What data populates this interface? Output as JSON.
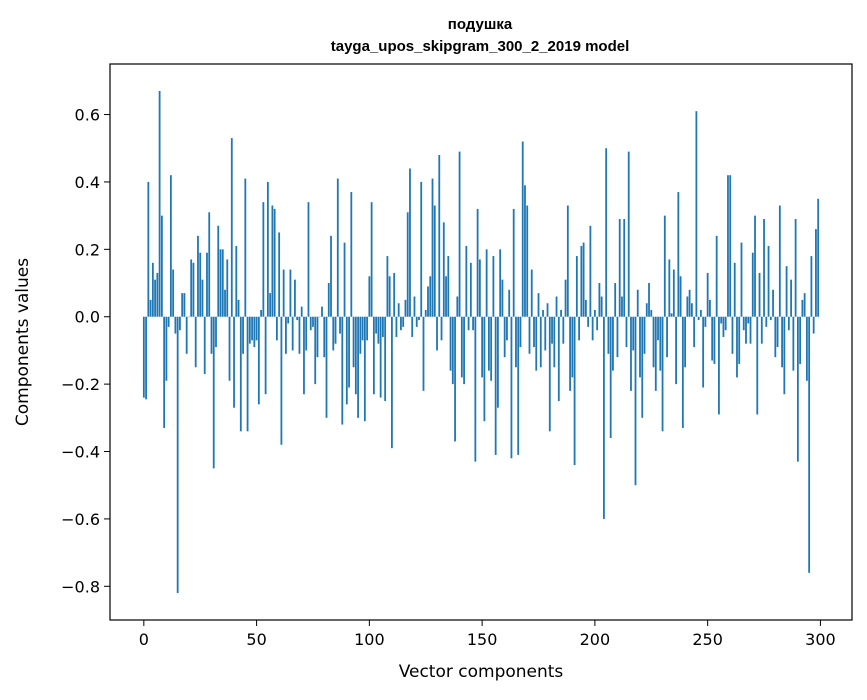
{
  "chart_data": {
    "type": "bar",
    "title": "подушка",
    "subtitle": "tayga_upos_skipgram_300_2_2019 model",
    "xlabel": "Vector components",
    "ylabel": "Components values",
    "xlim": [
      -15,
      314
    ],
    "ylim": [
      -0.9,
      0.75
    ],
    "xticks": [
      0,
      50,
      100,
      150,
      200,
      250,
      300
    ],
    "xtick_labels": [
      "0",
      "50",
      "100",
      "150",
      "200",
      "250",
      "300"
    ],
    "yticks": [
      -0.8,
      -0.6,
      -0.4,
      -0.2,
      0.0,
      0.2,
      0.4,
      0.6
    ],
    "ytick_labels": [
      "−0.8",
      "−0.6",
      "−0.4",
      "−0.2",
      "0.0",
      "0.2",
      "0.4",
      "0.6"
    ],
    "grid": false,
    "bar_color": "#1f77b4",
    "bar_width": 0.8,
    "values": [
      -0.24,
      -0.245,
      0.4,
      0.05,
      0.16,
      0.11,
      0.13,
      0.67,
      0.3,
      -0.33,
      -0.19,
      -0.03,
      0.42,
      0.14,
      -0.05,
      -0.82,
      -0.04,
      0.07,
      0.07,
      -0.11,
      0.0,
      0.17,
      0.16,
      -0.15,
      0.24,
      0.19,
      0.11,
      -0.17,
      0.19,
      0.31,
      -0.11,
      -0.45,
      -0.09,
      0.27,
      0.2,
      0.2,
      0.08,
      0.17,
      -0.19,
      0.53,
      -0.27,
      0.21,
      0.05,
      -0.34,
      -0.11,
      0.41,
      -0.34,
      -0.08,
      -0.07,
      -0.09,
      -0.07,
      -0.26,
      0.02,
      0.34,
      -0.23,
      0.4,
      0.07,
      0.33,
      0.32,
      -0.07,
      0.25,
      -0.38,
      0.14,
      -0.11,
      -0.02,
      0.14,
      -0.1,
      0.11,
      -0.01,
      -0.11,
      0.03,
      -0.23,
      -0.1,
      0.34,
      -0.04,
      -0.03,
      -0.2,
      -0.12,
      0.0,
      0.03,
      -0.12,
      -0.3,
      0.1,
      0.24,
      -0.1,
      -0.08,
      0.41,
      -0.05,
      -0.32,
      0.22,
      -0.26,
      -0.21,
      0.37,
      -0.15,
      -0.23,
      -0.3,
      -0.11,
      -0.07,
      -0.31,
      -0.07,
      0.12,
      0.34,
      -0.23,
      -0.05,
      -0.08,
      -0.24,
      -0.06,
      -0.25,
      0.18,
      0.12,
      -0.39,
      0.13,
      -0.06,
      0.04,
      -0.04,
      -0.03,
      0.05,
      0.31,
      0.44,
      -0.06,
      0.06,
      -0.03,
      -0.01,
      0.4,
      -0.22,
      0.02,
      0.09,
      0.12,
      0.41,
      0.33,
      -0.1,
      0.48,
      -0.07,
      0.28,
      0.12,
      0.18,
      -0.16,
      -0.2,
      -0.37,
      0.06,
      0.49,
      -0.18,
      -0.2,
      0.21,
      -0.04,
      0.16,
      -0.04,
      -0.43,
      0.32,
      0.17,
      -0.18,
      -0.31,
      0.2,
      -0.16,
      -0.19,
      0.18,
      -0.41,
      -0.27,
      0.2,
      0.11,
      -0.12,
      -0.07,
      0.08,
      -0.42,
      0.32,
      -0.15,
      -0.41,
      -0.09,
      0.52,
      0.39,
      0.33,
      -0.11,
      0.14,
      -0.09,
      -0.16,
      0.07,
      -0.15,
      0.02,
      -0.1,
      0.04,
      -0.34,
      -0.08,
      -0.15,
      0.06,
      -0.25,
      0.02,
      -0.08,
      0.11,
      0.33,
      -0.22,
      -0.18,
      -0.44,
      0.18,
      -0.07,
      0.21,
      0.22,
      0.05,
      -0.03,
      0.27,
      -0.07,
      0.02,
      -0.04,
      0.1,
      0.06,
      -0.6,
      0.5,
      -0.11,
      -0.36,
      -0.16,
      0.1,
      -0.12,
      0.29,
      0.06,
      0.29,
      -0.09,
      0.49,
      -0.22,
      -0.1,
      -0.5,
      0.08,
      -0.18,
      -0.3,
      -0.11,
      0.04,
      0.1,
      0.02,
      -0.15,
      -0.22,
      -0.07,
      -0.16,
      -0.34,
      0.3,
      -0.12,
      0.17,
      0.01,
      0.14,
      -0.2,
      0.37,
      0.12,
      -0.33,
      -0.15,
      0.06,
      0.08,
      0.04,
      -0.09,
      0.61,
      -0.01,
      0.02,
      -0.21,
      -0.03,
      0.13,
      0.05,
      -0.13,
      -0.14,
      0.24,
      -0.29,
      -0.02,
      -0.06,
      -0.04,
      0.42,
      0.42,
      -0.11,
      0.16,
      -0.18,
      -0.14,
      0.22,
      -0.04,
      -0.08,
      -0.02,
      -0.08,
      0.19,
      0.3,
      -0.29,
      0.13,
      -0.08,
      0.29,
      -0.03,
      0.21,
      -0.01,
      0.08,
      -0.12,
      -0.09,
      0.33,
      -0.15,
      -0.23,
      0.15,
      -0.04,
      0.11,
      -0.16,
      0.29,
      -0.43,
      -0.14,
      0.05,
      0.07,
      -0.19,
      -0.76,
      0.18,
      -0.05,
      0.26,
      0.35
    ]
  }
}
